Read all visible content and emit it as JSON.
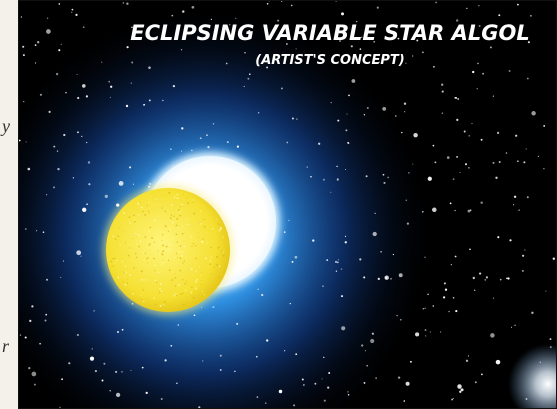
{
  "image": {
    "title": "ECLIPSING VARIABLE STAR ALGOL",
    "subtitle": "(ARTIST'S CONCEPT)",
    "side_text": [
      "y",
      "r"
    ]
  }
}
